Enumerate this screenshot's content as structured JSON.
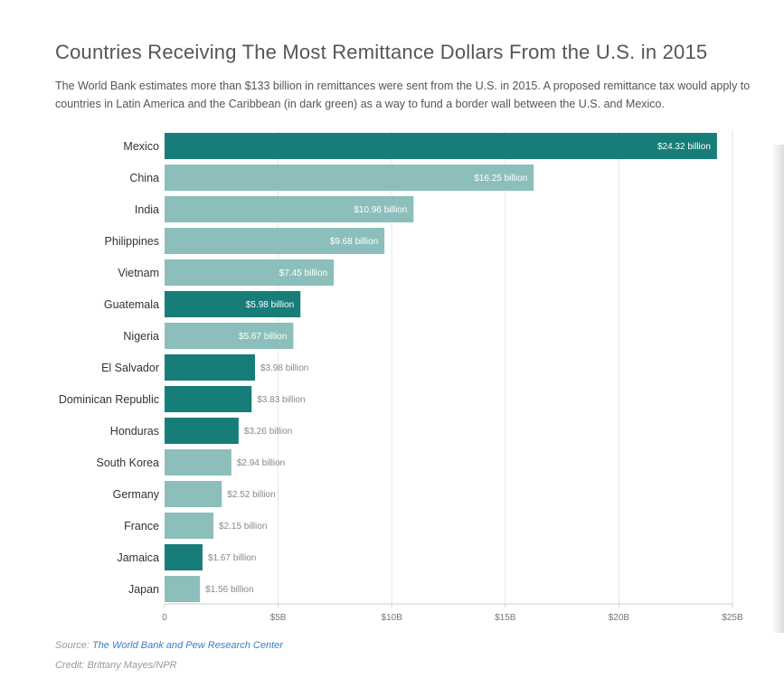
{
  "title": "Countries Receiving The Most Remittance Dollars From the U.S. in 2015",
  "subtitle": "The World Bank estimates more than $133 billion in remittances were sent from the U.S. in 2015. A proposed remittance tax would apply to countries in Latin America and the Caribbean (in dark green) as a way to fund a border wall between the U.S. and Mexico.",
  "source": {
    "prefix": "Source: ",
    "link_text": "The World Bank and Pew Research Center"
  },
  "credit": "Credit: Brittany Mayes/NPR",
  "colors": {
    "dark_green": "#177d78",
    "light_green": "#8cbfbb",
    "gridline": "#e6e6e6",
    "axis": "#cccccc"
  },
  "chart_data": {
    "type": "bar",
    "orientation": "horizontal",
    "title": "Countries Receiving The Most Remittance Dollars From the U.S. in 2015",
    "xlabel": "",
    "ylabel": "",
    "xlim": [
      0,
      25
    ],
    "grid": true,
    "categories": [
      "Mexico",
      "China",
      "India",
      "Philippines",
      "Vietnam",
      "Guatemala",
      "Nigeria",
      "El Salvador",
      "Dominican Republic",
      "Honduras",
      "South Korea",
      "Germany",
      "France",
      "Jamaica",
      "Japan"
    ],
    "values": [
      24.32,
      16.25,
      10.96,
      9.68,
      7.45,
      5.98,
      5.67,
      3.98,
      3.83,
      3.26,
      2.94,
      2.52,
      2.15,
      1.67,
      1.56
    ],
    "data_labels": [
      "$24.32 billion",
      "$16.25 billion",
      "$10.96 billion",
      "$9.68 billion",
      "$7.45 billion",
      "$5.98 billion",
      "$5.67 billion",
      "$3.98 billion",
      "$3.83 billion",
      "$3.26 billion",
      "$2.94 billion",
      "$2.52 billion",
      "$2.15 billion",
      "$1.67 billion",
      "$1.56 billion"
    ],
    "latin_america_caribbean": [
      true,
      false,
      false,
      false,
      false,
      true,
      false,
      true,
      true,
      true,
      false,
      false,
      false,
      true,
      false
    ],
    "x_ticks": [
      0,
      5,
      10,
      15,
      20,
      25
    ],
    "x_tick_labels": [
      "0",
      "$5B",
      "$10B",
      "$15B",
      "$20B",
      "$25B"
    ]
  }
}
